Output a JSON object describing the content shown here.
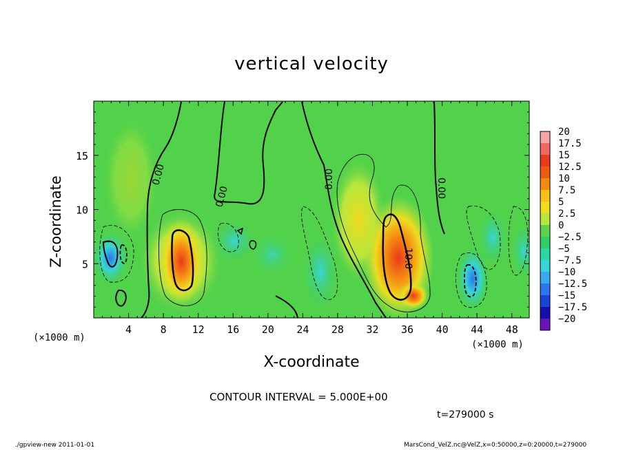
{
  "chart_data": {
    "type": "heatmap",
    "title": "vertical velocity",
    "xlabel": "X-coordinate",
    "ylabel": "Z-coordinate",
    "x_unit_label": "(×1000 m)",
    "xlim": [
      0,
      50
    ],
    "ylim": [
      0,
      20
    ],
    "x_ticks": [
      "4",
      "8",
      "12",
      "16",
      "20",
      "24",
      "28",
      "32",
      "36",
      "40",
      "44",
      "48"
    ],
    "y_ticks": [
      "5",
      "10",
      "15"
    ],
    "colorbar": {
      "labels": [
        "20",
        "17.5",
        "15",
        "12.5",
        "10",
        "7.5",
        "5",
        "2.5",
        "0",
        "−2.5",
        "−5",
        "−7.5",
        "−10",
        "−12.5",
        "−15",
        "−17.5",
        "−20"
      ],
      "colors": [
        "#f4a6a6",
        "#f06a62",
        "#ea3a1c",
        "#f05a10",
        "#f58a10",
        "#f8c018",
        "#eedc20",
        "#b8e63c",
        "#5ad44c",
        "#34cc64",
        "#2cd7a0",
        "#38d4d8",
        "#3aaaf0",
        "#2a78ec",
        "#1a44d8",
        "#1410b0",
        "#6a14b8"
      ]
    },
    "contour_labels": [
      "0.00",
      "0.00",
      "0.00",
      "0.00",
      "10.0"
    ],
    "contour_interval": "CONTOUR INTERVAL = 5.000E+00",
    "time": "t=279000 s"
  },
  "footer": {
    "left": "./gpview-new   2011-01-01",
    "right": "MarsCond_VelZ.nc@VelZ,x=0:50000,z=0:20000,t=279000"
  }
}
